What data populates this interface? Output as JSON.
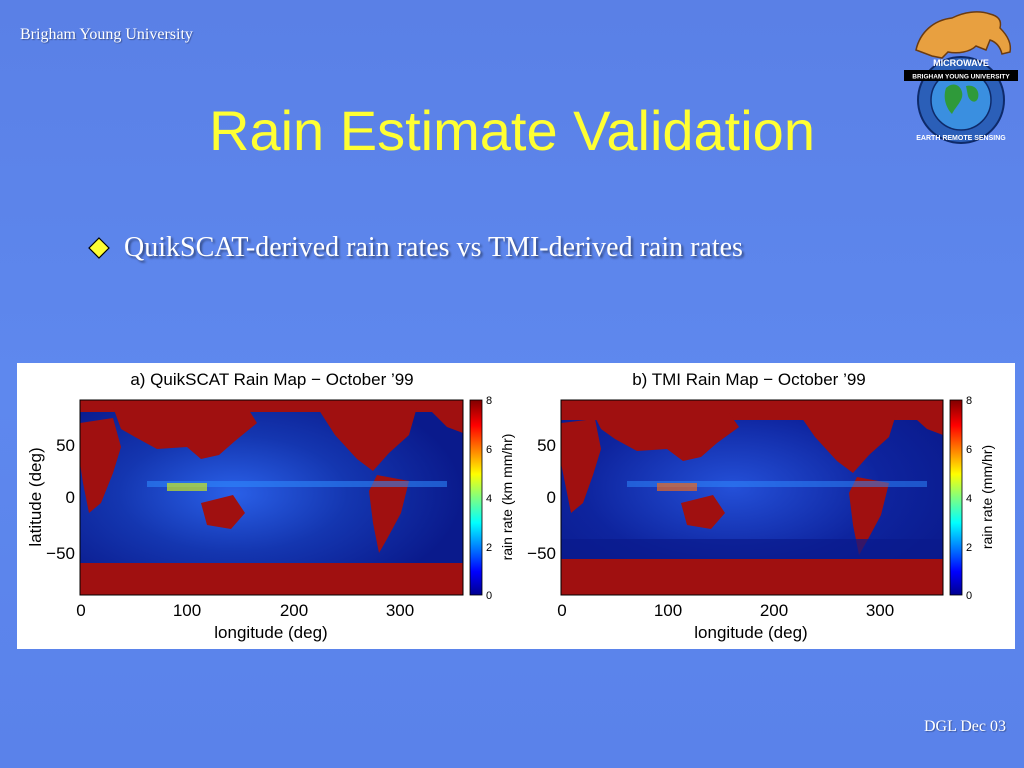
{
  "header": {
    "institution": "Brigham Young University"
  },
  "logo": {
    "ring_top": "MICROWAVE",
    "banner": "BRIGHAM YOUNG UNIVERSITY",
    "ring_bottom": "EARTH REMOTE SENSING"
  },
  "slide": {
    "title": "Rain Estimate Validation",
    "bullet": "QuikSCAT-derived rain rates vs TMI-derived rain rates"
  },
  "figure": {
    "panels": [
      {
        "title": "a) QuikSCAT Rain Map − October ’99",
        "xlabel": "longitude (deg)",
        "ylabel": "latitude (deg)",
        "xticks": [
          "0",
          "100",
          "200",
          "300"
        ],
        "yticks": [
          "50",
          "0",
          "−50"
        ],
        "colorbar_label": "rain rate (km mm/hr)",
        "colorbar_ticks": [
          "8",
          "6",
          "4",
          "2",
          "0"
        ]
      },
      {
        "title": "b) TMI Rain Map − October ’99",
        "xlabel": "longitude (deg)",
        "ylabel": "",
        "xticks": [
          "0",
          "100",
          "200",
          "300"
        ],
        "yticks": [
          "50",
          "0",
          "−50"
        ],
        "colorbar_label": "rain rate (mm/hr)",
        "colorbar_ticks": [
          "8",
          "6",
          "4",
          "2",
          "0"
        ]
      }
    ],
    "colors": {
      "land": "#a01010",
      "ocean_dark": "#0a1a8c",
      "ocean_mid": "#1840c8"
    }
  },
  "footer": {
    "label": "DGL Dec 03"
  }
}
